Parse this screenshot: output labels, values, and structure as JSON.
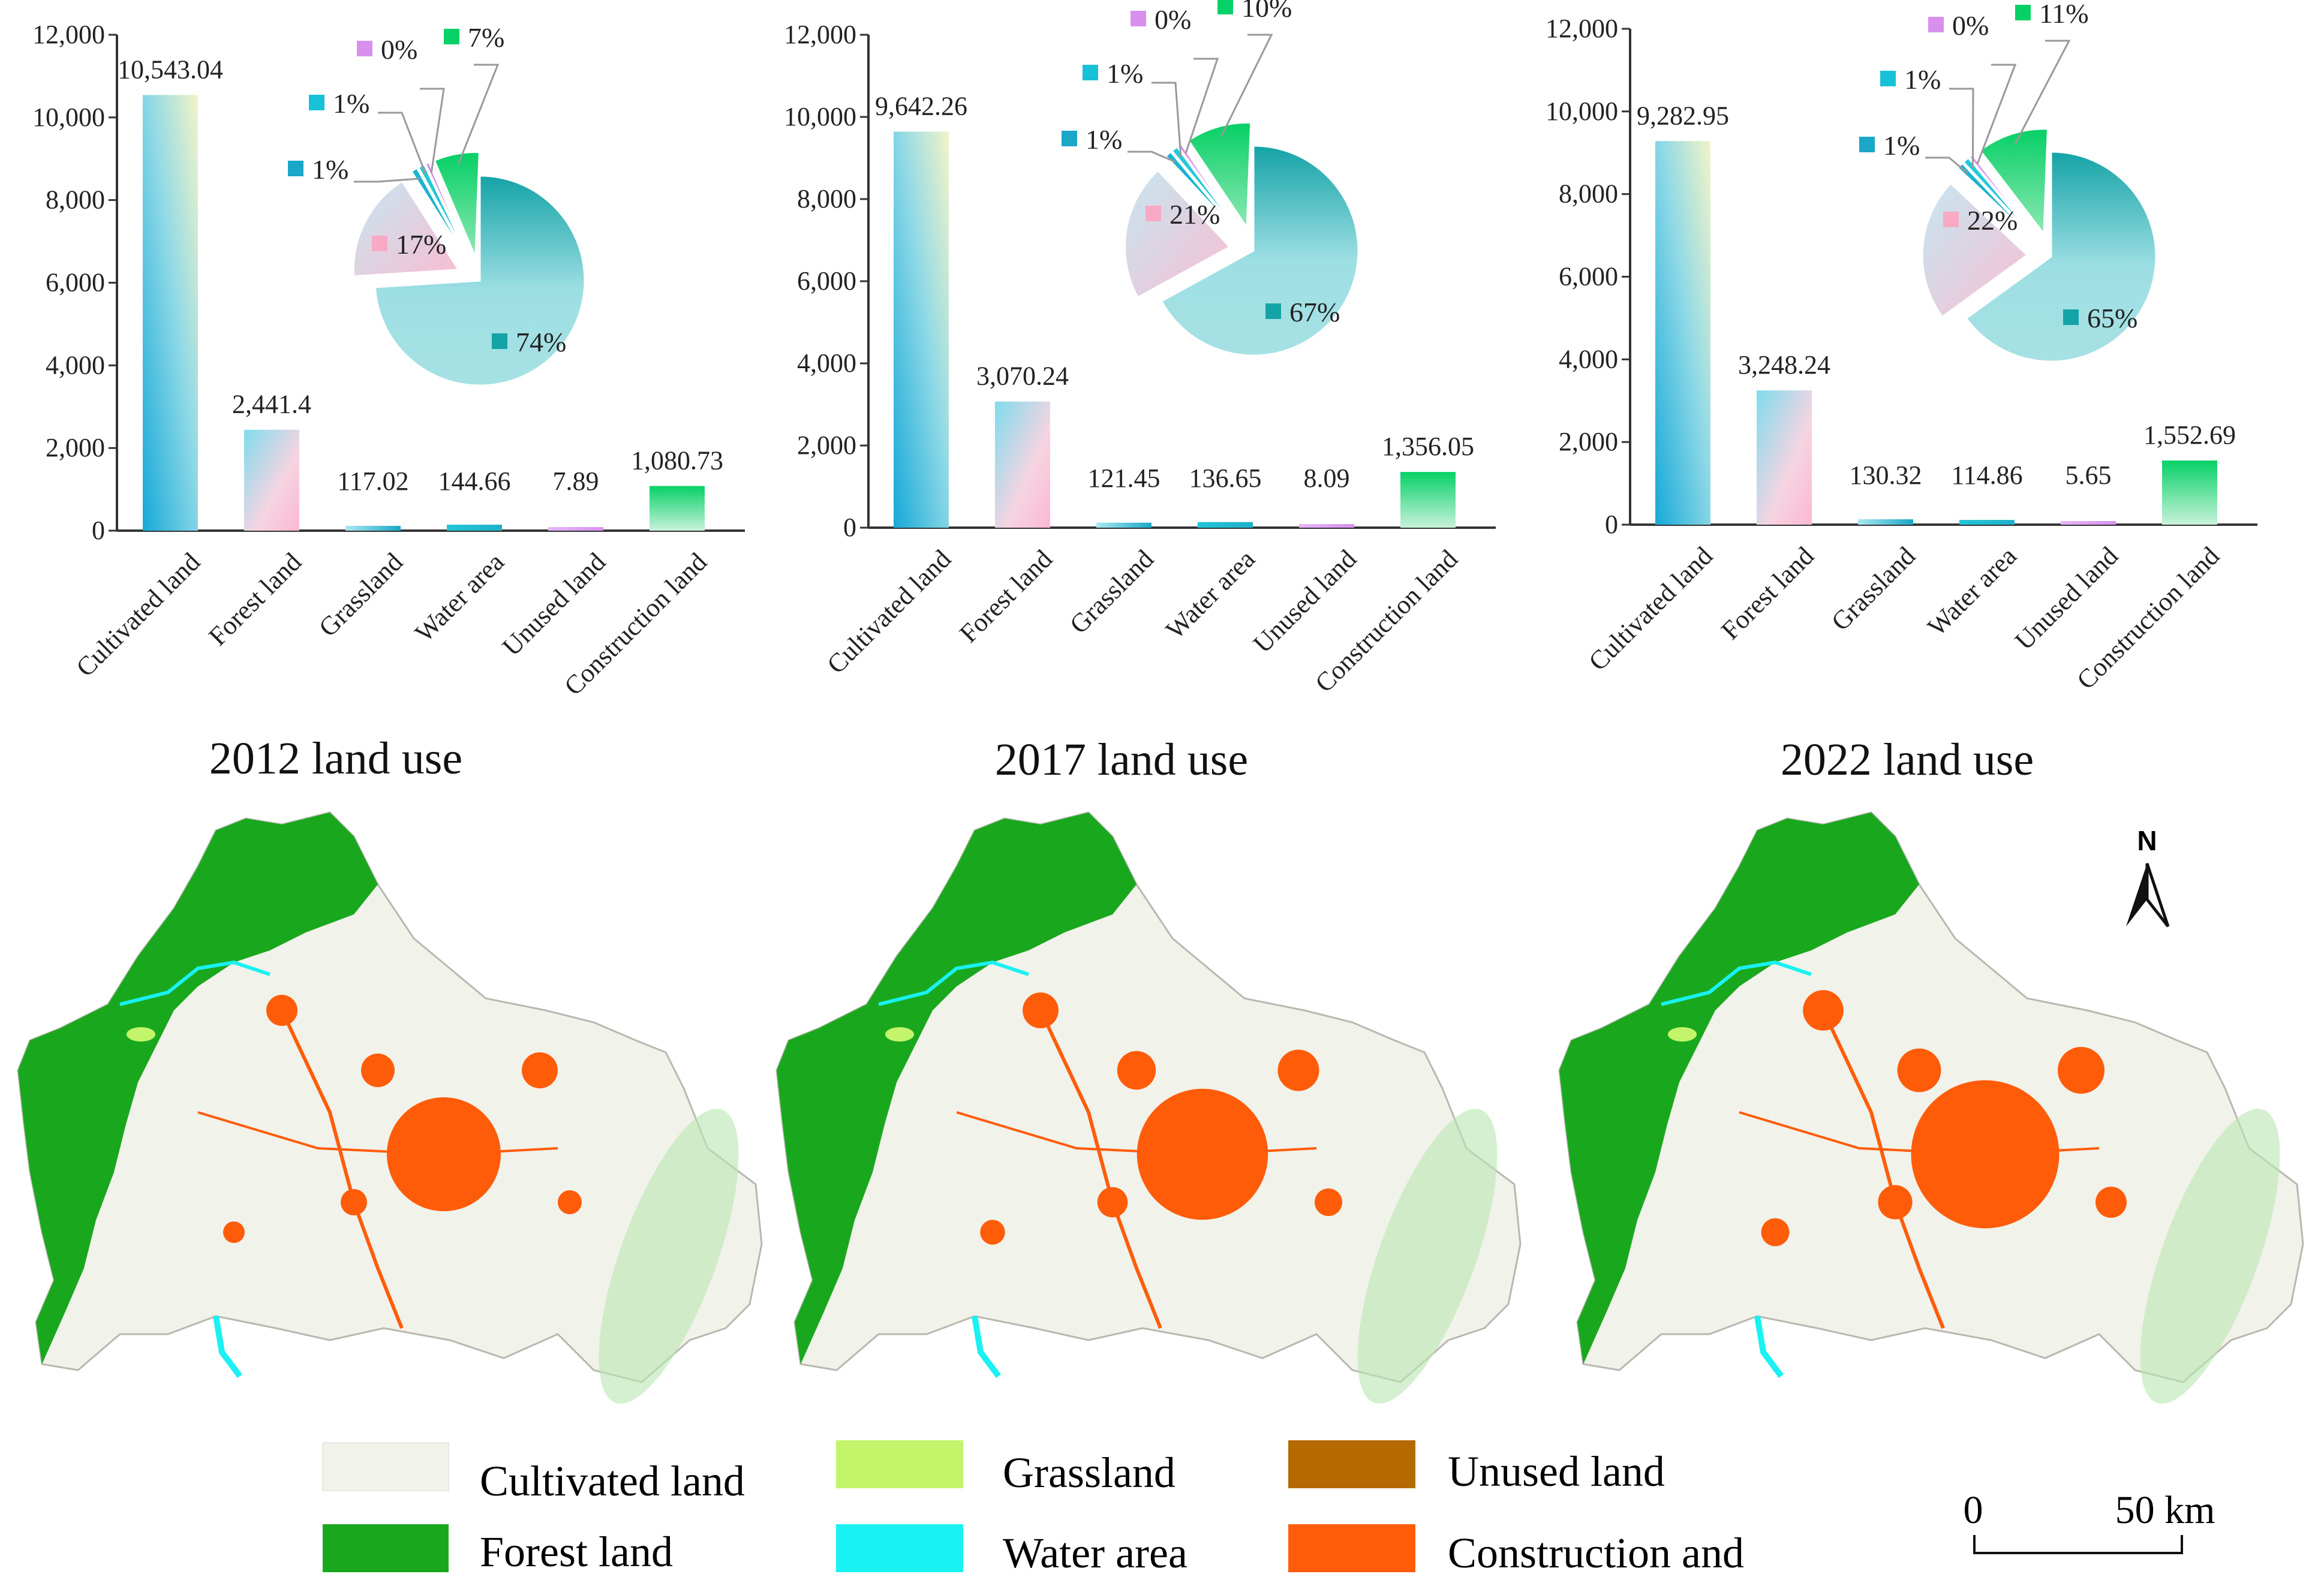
{
  "chart_data": [
    {
      "type": "bar",
      "title": "2012 land use",
      "categories": [
        "Cultivated land",
        "Forest land",
        "Grassland",
        "Water area",
        "Unused land",
        "Construction land"
      ],
      "values": [
        10543.04,
        2441.4,
        117.02,
        144.66,
        7.89,
        1080.73
      ],
      "value_labels": [
        "10,543.04",
        "2,441.4",
        "117.02",
        "144.66",
        "7.89",
        "1,080.73"
      ],
      "ylim": [
        0,
        12000
      ],
      "yticks": [
        "0",
        "2,000",
        "4,000",
        "6,000",
        "8,000",
        "10,000",
        "12,000"
      ],
      "pie": {
        "labels": [
          "74%",
          "17%",
          "1%",
          "1%",
          "0%",
          "7%"
        ]
      }
    },
    {
      "type": "bar",
      "title": "2017 land use",
      "categories": [
        "Cultivated land",
        "Forest land",
        "Grassland",
        "Water area",
        "Unused land",
        "Construction land"
      ],
      "values": [
        9642.26,
        3070.24,
        121.45,
        136.65,
        8.09,
        1356.05
      ],
      "value_labels": [
        "9,642.26",
        "3,070.24",
        "121.45",
        "136.65",
        "8.09",
        "1,356.05"
      ],
      "ylim": [
        0,
        12000
      ],
      "yticks": [
        "0",
        "2,000",
        "4,000",
        "6,000",
        "8,000",
        "10,000",
        "12,000"
      ],
      "pie": {
        "labels": [
          "67%",
          "21%",
          "1%",
          "1%",
          "0%",
          "10%"
        ]
      }
    },
    {
      "type": "bar",
      "title": "2022 land use",
      "categories": [
        "Cultivated land",
        "Forest land",
        "Grassland",
        "Water area",
        "Unused land",
        "Construction land"
      ],
      "values": [
        9282.95,
        3248.24,
        130.32,
        114.86,
        5.65,
        1552.69
      ],
      "value_labels": [
        "9,282.95",
        "3,248.24",
        "130.32",
        "114.86",
        "5.65",
        "1,552.69"
      ],
      "ylim": [
        0,
        12000
      ],
      "yticks": [
        "0",
        "2,000",
        "4,000",
        "6,000",
        "8,000",
        "10,000",
        "12,000"
      ],
      "pie": {
        "labels": [
          "65%",
          "22%",
          "1%",
          "1%",
          "0%",
          "11%"
        ]
      }
    }
  ],
  "legend": {
    "items": [
      {
        "label": "Cultivated land",
        "color": "#f1f2ea"
      },
      {
        "label": "Forest land",
        "color": "#19a81d"
      },
      {
        "label": "Grassland",
        "color": "#c3f56b"
      },
      {
        "label": "Water area",
        "color": "#19f1f2"
      },
      {
        "label": "Unused land",
        "color": "#b46a00"
      },
      {
        "label": "Construction and",
        "color": "#ff5c0a"
      }
    ]
  },
  "scale_bar": {
    "zero": "0",
    "label": "50 km"
  },
  "north_arrow": {
    "letter": "N"
  },
  "colors": {
    "cultivated": "#f1f2ea",
    "forest": "#19a81d",
    "grassland": "#c3f56b",
    "water": "#19f1f2",
    "unused": "#b46a00",
    "construction": "#ff5c0a"
  }
}
